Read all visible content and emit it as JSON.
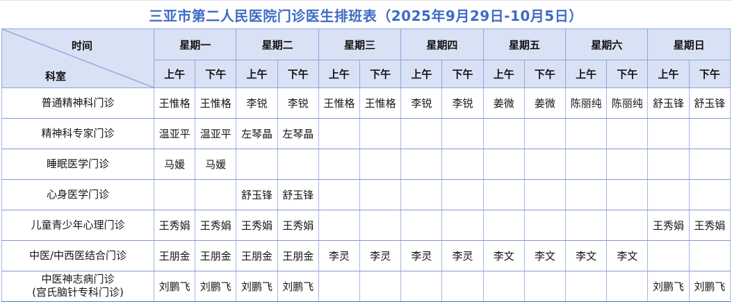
{
  "title": "三亚市第二人民医院门诊医生排班表（2025年9月29日-10月5日）",
  "header": {
    "corner_top": "时间",
    "corner_bottom": "科室",
    "days": [
      "星期一",
      "星期二",
      "星期三",
      "星期四",
      "星期五",
      "星期六",
      "星期日"
    ],
    "am": "上午",
    "pm": "下午"
  },
  "colors": {
    "title_text": "#3f6bc5",
    "header_bg": "#d9e1f5",
    "border_strong": "#8ca6da",
    "grid_vertical": "#a3b6e3",
    "grid_horizontal": "#8099d2",
    "bottom_edge": "#4a74c4"
  },
  "rows": [
    {
      "dept": "普通精神科门诊",
      "cells": [
        "王惟格",
        "王惟格",
        "李锐",
        "李锐",
        "王惟格",
        "王惟格",
        "李锐",
        "李锐",
        "姜微",
        "姜微",
        "陈丽纯",
        "陈丽纯",
        "舒玉锋",
        "舒玉锋"
      ]
    },
    {
      "dept": "精神科专家门诊",
      "cells": [
        "温亚平",
        "温亚平",
        "左琴晶",
        "左琴晶",
        "",
        "",
        "",
        "",
        "",
        "",
        "",
        "",
        "",
        ""
      ]
    },
    {
      "dept": "睡眠医学门诊",
      "cells": [
        "马媛",
        "马媛",
        "",
        "",
        "",
        "",
        "",
        "",
        "",
        "",
        "",
        "",
        "",
        ""
      ]
    },
    {
      "dept": "心身医学门诊",
      "cells": [
        "",
        "",
        "舒玉锋",
        "舒玉锋",
        "",
        "",
        "",
        "",
        "",
        "",
        "",
        "",
        "",
        ""
      ]
    },
    {
      "dept": "儿童青少年心理门诊",
      "cells": [
        "王秀娟",
        "王秀娟",
        "王秀娟",
        "王秀娟",
        "",
        "",
        "",
        "",
        "",
        "",
        "",
        "",
        "王秀娟",
        "王秀娟"
      ]
    },
    {
      "dept": "中医/中西医结合门诊",
      "cells": [
        "王朋金",
        "王朋金",
        "王朋金",
        "王朋金",
        "李灵",
        "李灵",
        "李灵",
        "李灵",
        "李文",
        "李文",
        "李文",
        "李文",
        "",
        ""
      ]
    },
    {
      "dept": "中医神志病门诊",
      "dept2": "(宫氏脑针专科门诊)",
      "cells": [
        "刘鹏飞",
        "刘鹏飞",
        "刘鹏飞",
        "刘鹏飞",
        "",
        "",
        "",
        "",
        "",
        "",
        "",
        "",
        "刘鹏飞",
        "刘鹏飞"
      ]
    }
  ]
}
